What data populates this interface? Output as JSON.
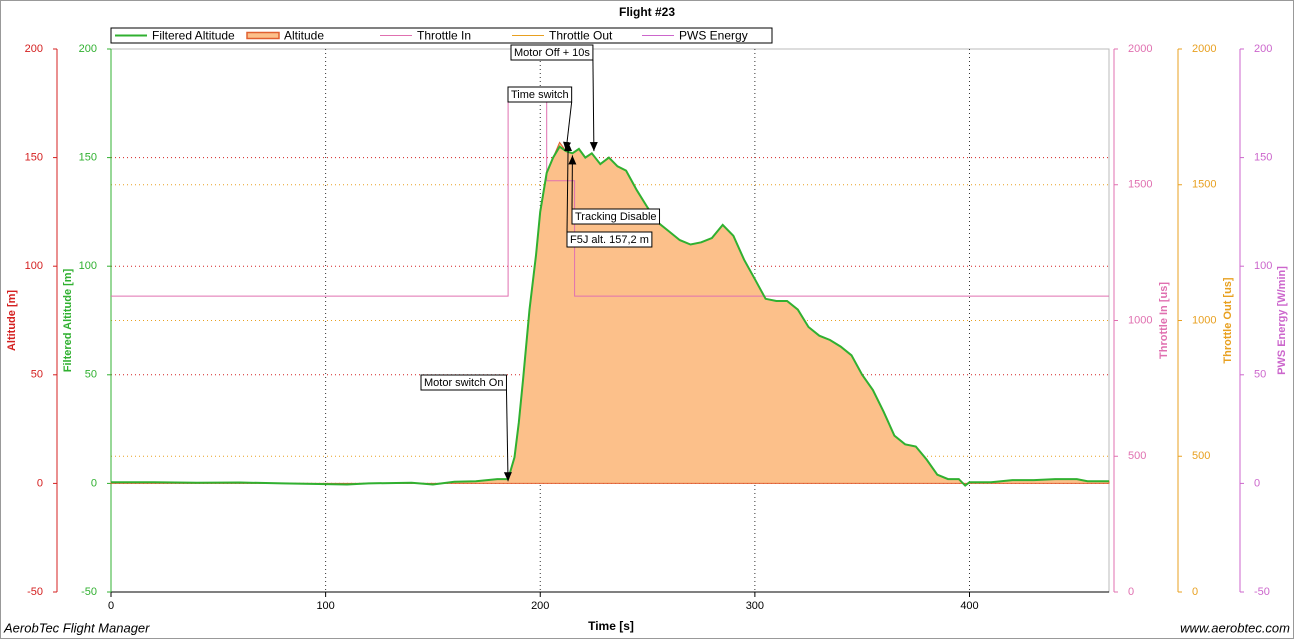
{
  "chart_data": {
    "type": "line",
    "title": "Flight #23",
    "x_label": "Time [s]",
    "xlim": [
      0,
      465
    ],
    "xticks": [
      0,
      100,
      200,
      300,
      400
    ],
    "x_grid": true,
    "y_grid_axes": [
      0,
      3
    ],
    "y_axes": [
      {
        "label": "Altitude [m]",
        "color": "#d42020",
        "lim": [
          -50,
          200
        ],
        "ticks": [
          -50,
          0,
          50,
          100,
          150,
          200
        ]
      },
      {
        "label": "Filtered Altitude [m]",
        "color": "#30b030",
        "lim": [
          -50,
          200
        ],
        "ticks": [
          -50,
          0,
          50,
          100,
          150,
          200
        ]
      },
      {
        "label": "Throttle In [us]",
        "color": "#e070b0",
        "lim": [
          0,
          2000
        ],
        "ticks": [
          0,
          500,
          1000,
          1500,
          2000
        ]
      },
      {
        "label": "Throttle Out [us]",
        "color": "#e8a020",
        "lim": [
          0,
          2000
        ],
        "ticks": [
          0,
          500,
          1000,
          1500,
          2000
        ]
      },
      {
        "label": "PWS Energy [W/min]",
        "color": "#cc66cc",
        "lim": [
          -50,
          200
        ],
        "ticks": [
          -50,
          0,
          50,
          100,
          150,
          200
        ]
      }
    ],
    "series": [
      {
        "name": "Filtered Altitude",
        "color": "#30b030",
        "axis": 1,
        "x": [
          0,
          20,
          40,
          60,
          80,
          100,
          110,
          120,
          140,
          150,
          160,
          170,
          180,
          185,
          188,
          190,
          192,
          195,
          198,
          200,
          203,
          206,
          209,
          212,
          215,
          218,
          221,
          224,
          228,
          232,
          236,
          240,
          245,
          250,
          255,
          260,
          265,
          270,
          275,
          280,
          285,
          290,
          295,
          300,
          305,
          310,
          315,
          320,
          325,
          330,
          335,
          340,
          345,
          350,
          355,
          360,
          365,
          370,
          375,
          380,
          385,
          390,
          395,
          398,
          400,
          410,
          420,
          430,
          440,
          450,
          455,
          465
        ],
        "values": [
          0.5,
          0.5,
          0.3,
          0.4,
          0,
          -0.3,
          -0.5,
          0,
          0.3,
          -0.5,
          0.8,
          1,
          2,
          2,
          12,
          28,
          48,
          80,
          105,
          125,
          143,
          150,
          155,
          153,
          152,
          154,
          150,
          152,
          147,
          150,
          146,
          144,
          135,
          127,
          120,
          116,
          112,
          110,
          111,
          113,
          119,
          114,
          103,
          94,
          85,
          84,
          84,
          80,
          72,
          68,
          66,
          63,
          59,
          50,
          43,
          33,
          22,
          18,
          17,
          11,
          4,
          2,
          2,
          -1,
          0.5,
          0.5,
          1.5,
          1.5,
          2,
          2,
          1,
          1
        ]
      },
      {
        "name": "Altitude",
        "color": "#e06030",
        "fill": "#fcc08a",
        "axis": 0,
        "x": [
          0,
          20,
          40,
          60,
          80,
          100,
          110,
          120,
          140,
          150,
          160,
          170,
          180,
          185,
          188,
          190,
          192,
          195,
          198,
          200,
          203,
          206,
          209,
          212,
          215,
          218,
          221,
          224,
          228,
          232,
          236,
          240,
          245,
          250,
          255,
          260,
          265,
          270,
          275,
          280,
          285,
          290,
          295,
          300,
          305,
          310,
          315,
          320,
          325,
          330,
          335,
          340,
          345,
          350,
          355,
          360,
          365,
          370,
          375,
          380,
          385,
          390,
          395,
          398,
          400,
          410,
          420,
          430,
          440,
          450,
          455,
          465
        ],
        "values": [
          0.5,
          0.5,
          0.3,
          0.4,
          0,
          -0.3,
          -0.5,
          0,
          0.3,
          -0.5,
          0.8,
          1,
          2,
          2,
          12,
          28,
          48,
          80,
          105,
          125,
          143,
          150,
          157,
          153,
          152,
          154,
          150,
          152,
          147,
          150,
          146,
          144,
          135,
          127,
          120,
          116,
          112,
          110,
          111,
          113,
          119,
          114,
          103,
          94,
          85,
          84,
          84,
          80,
          72,
          68,
          66,
          63,
          59,
          50,
          43,
          33,
          22,
          18,
          17,
          11,
          4,
          2,
          2,
          -1,
          0.5,
          0.5,
          1.5,
          1.5,
          2,
          2,
          1,
          1
        ]
      },
      {
        "name": "Throttle In",
        "color": "#e070b0",
        "axis": 2,
        "x": [
          0,
          185,
          185,
          203,
          203,
          216,
          216,
          465
        ],
        "values": [
          1090,
          1090,
          1830,
          1830,
          1515,
          1515,
          1090,
          1090
        ]
      },
      {
        "name": "Throttle Out",
        "color": "#e8a020",
        "axis": 3
      },
      {
        "name": "PWS Energy",
        "color": "#cc66cc",
        "axis": 4
      }
    ],
    "annotations": [
      {
        "text": "Motor switch On",
        "x": 185,
        "y": 1
      },
      {
        "text": "Time switch",
        "x": 212,
        "y": 153
      },
      {
        "text": "Motor Off + 10s",
        "x": 225,
        "y": 153
      },
      {
        "text": "Tracking Disable",
        "x": 215,
        "y": 151
      },
      {
        "text": "F5J alt. 157,2 m",
        "x": 213,
        "y": 157.2
      }
    ],
    "footer_left": "AerobTec Flight Manager",
    "footer_right": "www.aerobtec.com"
  }
}
